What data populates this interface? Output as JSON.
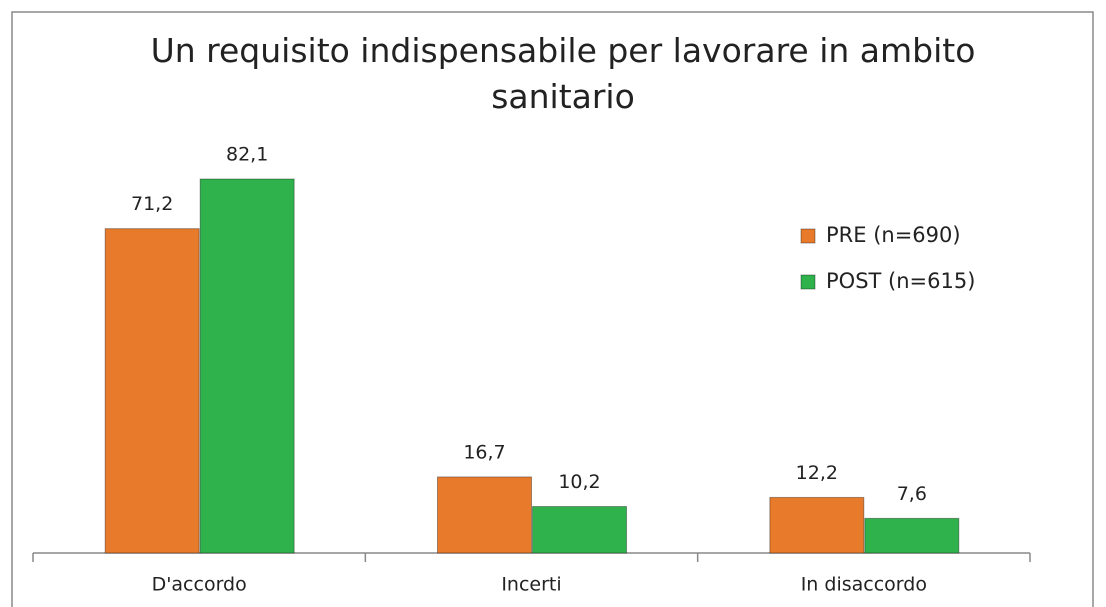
{
  "chart_data": {
    "type": "bar",
    "title": "Un requisito indispensabile per lavorare in ambito sanitario",
    "categories": [
      "D'accordo",
      "Incerti",
      "In disaccordo"
    ],
    "series": [
      {
        "name": "PRE (n=690)",
        "color": "#e87a2c",
        "values": [
          71.2,
          16.7,
          12.2
        ],
        "value_labels": [
          "71,2",
          "16,7",
          "12,2"
        ]
      },
      {
        "name": "POST (n=615)",
        "color": "#2fb24c",
        "values": [
          82.1,
          10.2,
          7.6
        ],
        "value_labels": [
          "82,1",
          "10,2",
          "7,6"
        ]
      }
    ]
  }
}
